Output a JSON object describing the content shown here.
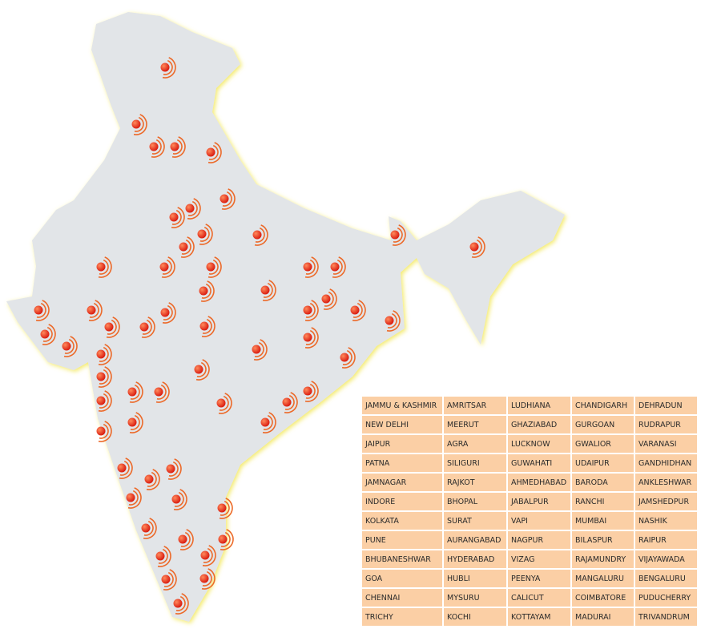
{
  "table": {
    "rows": [
      [
        "JAMMU & KASHMIR",
        "AMRITSAR",
        "LUDHIANA",
        "CHANDIGARH",
        "DEHRADUN"
      ],
      [
        "NEW DELHI",
        "MEERUT",
        "GHAZIABAD",
        "GURGOAN",
        "RUDRAPUR"
      ],
      [
        "JAIPUR",
        "AGRA",
        "LUCKNOW",
        "GWALIOR",
        "VARANASI"
      ],
      [
        "PATNA",
        "SILIGURI",
        "GUWAHATI",
        "UDAIPUR",
        "GANDHIDHAN"
      ],
      [
        "JAMNAGAR",
        "RAJKOT",
        "AHMEDHABAD",
        "BARODA",
        "ANKLESHWAR"
      ],
      [
        "INDORE",
        "BHOPAL",
        "JABALPUR",
        "RANCHI",
        "JAMSHEDPUR"
      ],
      [
        "KOLKATA",
        "SURAT",
        "VAPI",
        "MUMBAI",
        "NASHIK"
      ],
      [
        "PUNE",
        "AURANGABAD",
        "NAGPUR",
        "BILASPUR",
        "RAIPUR"
      ],
      [
        "BHUBANESHWAR",
        "HYDERABAD",
        "VIZAG",
        "RAJAMUNDRY",
        "VIJAYAWADA"
      ],
      [
        "GOA",
        "HUBLI",
        "PEENYA",
        "MANGALURU",
        "BENGALURU"
      ],
      [
        "CHENNAI",
        "MYSURU",
        "CALICUT",
        "COIMBATORE",
        "PUDUCHERRY"
      ],
      [
        "TRICHY",
        "KOCHI",
        "KOTTAYAM",
        "MADURAI",
        "TRIVANDRUM"
      ]
    ]
  }
}
